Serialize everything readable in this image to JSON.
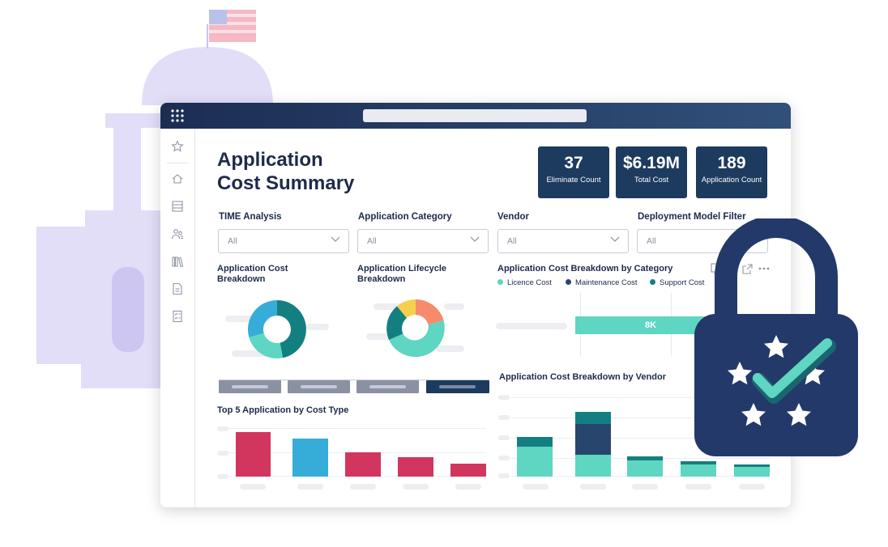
{
  "page_title_line1": "Application",
  "page_title_line2": "Cost Summary",
  "kpis": [
    {
      "value": "37",
      "label": "Eliminate Count"
    },
    {
      "value": "$6.19M",
      "label": "Total Cost"
    },
    {
      "value": "189",
      "label": "Application Count"
    }
  ],
  "filters": [
    {
      "label": "TIME Analysis",
      "value": "All"
    },
    {
      "label": "Application Category",
      "value": "All"
    },
    {
      "label": "Vendor",
      "value": "All"
    },
    {
      "label": "Deployment Model Filter",
      "value": "All"
    }
  ],
  "sections": {
    "cost_breakdown": "Application Cost Breakdown",
    "lifecycle_breakdown": "Application Lifecycle Breakdown",
    "breakdown_by_category": "Application Cost Breakdown by Category",
    "breakdown_by_vendor": "Application Cost Breakdown by Vendor",
    "top5": "Top 5 Application by Cost Type"
  },
  "category_legend": [
    "Licence Cost",
    "Maintenance Cost",
    "Support Cost"
  ],
  "category_bar_label": "8K",
  "colors": {
    "navy": "#1d3a5f",
    "teal": "#147f80",
    "mint": "#5ed6c1",
    "crimson": "#d2355d",
    "sky": "#36acd9",
    "orange": "#f58b6c",
    "yellow": "#f6cf4e",
    "lavender": "#e4e0fa"
  },
  "icons": [
    "apps-grid-icon",
    "star-icon",
    "home-icon",
    "list-icon",
    "users-icon",
    "library-icon",
    "document-icon",
    "checklist-icon",
    "copy-icon",
    "expand-icon",
    "more-icon",
    "lock-icon",
    "checkmark-icon",
    "flag-icon"
  ]
}
